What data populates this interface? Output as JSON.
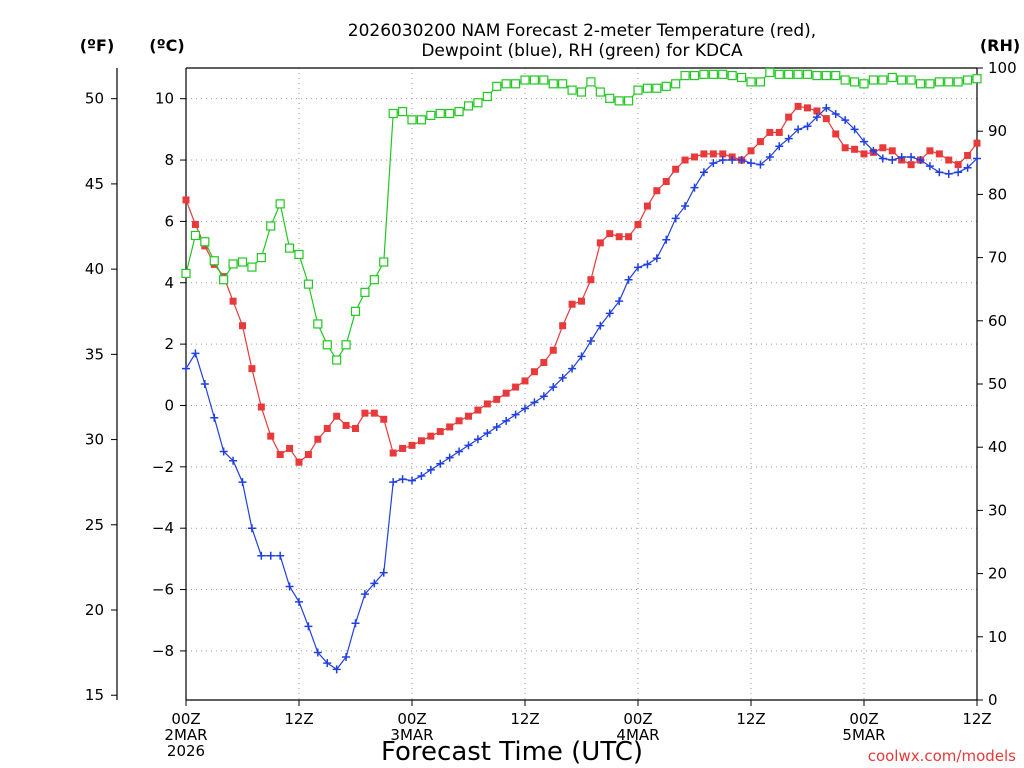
{
  "chart_data": {
    "type": "line",
    "title": [
      "2026030200 NAM Forecast 2-meter Temperature (red),",
      "Dewpoint (blue), RH (green) for KDCA"
    ],
    "xlabel": "Forecast Time (UTC)",
    "credit": "coolwx.com/models",
    "units": {
      "left_f": "(ºF)",
      "left_c": "(ºC)",
      "right": "(RH)"
    },
    "x_range_hours": [
      0,
      84
    ],
    "x_ticks": [
      {
        "hour": 0,
        "lines": [
          "00Z",
          "2MAR",
          "2026"
        ]
      },
      {
        "hour": 12,
        "lines": [
          "12Z"
        ]
      },
      {
        "hour": 24,
        "lines": [
          "00Z",
          "3MAR"
        ]
      },
      {
        "hour": 36,
        "lines": [
          "12Z"
        ]
      },
      {
        "hour": 48,
        "lines": [
          "00Z",
          "4MAR"
        ]
      },
      {
        "hour": 60,
        "lines": [
          "12Z"
        ]
      },
      {
        "hour": 72,
        "lines": [
          "00Z",
          "5MAR"
        ]
      },
      {
        "hour": 84,
        "lines": [
          "12Z"
        ]
      }
    ],
    "y_left_c": {
      "range": [
        -9.6,
        11.0
      ],
      "ticks": [
        -8,
        -6,
        -4,
        -2,
        0,
        2,
        4,
        6,
        8,
        10
      ]
    },
    "y_left_f": {
      "range": [
        15,
        51.8
      ],
      "ticks": [
        15,
        20,
        25,
        30,
        35,
        40,
        45,
        50
      ]
    },
    "y_right_rh": {
      "range": [
        0,
        100
      ],
      "ticks": [
        0,
        10,
        20,
        30,
        40,
        50,
        60,
        70,
        80,
        90,
        100
      ]
    },
    "grid": true,
    "colors": {
      "temperature": "#e8393b",
      "dewpoint": "#2140e0",
      "rh": "#21c821"
    },
    "series": [
      {
        "name": "Temperature",
        "axis": "celsius",
        "marker": "filled-square",
        "x": [
          0,
          1,
          2,
          3,
          4,
          5,
          6,
          7,
          8,
          9,
          10,
          11,
          12,
          13,
          14,
          15,
          16,
          17,
          18,
          19,
          20,
          21,
          22,
          23,
          24,
          25,
          26,
          27,
          28,
          29,
          30,
          31,
          32,
          33,
          34,
          35,
          36,
          37,
          38,
          39,
          40,
          41,
          42,
          43,
          44,
          45,
          46,
          47,
          48,
          49,
          50,
          51,
          52,
          53,
          54,
          55,
          56,
          57,
          58,
          59,
          60,
          61,
          62,
          63,
          64,
          65,
          66,
          67,
          68,
          69,
          70,
          71,
          72,
          73,
          74,
          75,
          76,
          77,
          78,
          79,
          80,
          81,
          82,
          83,
          84
        ],
        "values": [
          6.7,
          5.9,
          5.2,
          4.6,
          4.2,
          3.4,
          2.6,
          1.2,
          -0.05,
          -1.0,
          -1.6,
          -1.4,
          -1.85,
          -1.6,
          -1.1,
          -0.75,
          -0.35,
          -0.65,
          -0.75,
          -0.25,
          -0.25,
          -0.45,
          -1.55,
          -1.4,
          -1.3,
          -1.15,
          -1.0,
          -0.85,
          -0.7,
          -0.5,
          -0.35,
          -0.15,
          0.05,
          0.2,
          0.4,
          0.6,
          0.8,
          1.1,
          1.4,
          1.8,
          2.6,
          3.3,
          3.4,
          4.1,
          5.3,
          5.6,
          5.5,
          5.5,
          5.9,
          6.5,
          7.0,
          7.3,
          7.7,
          8.0,
          8.1,
          8.2,
          8.2,
          8.2,
          8.1,
          8.0,
          8.3,
          8.6,
          8.9,
          8.9,
          9.4,
          9.75,
          9.7,
          9.6,
          9.35,
          8.85,
          8.4,
          8.35,
          8.2,
          8.25,
          8.4,
          8.3,
          8.0,
          7.85,
          8.0,
          8.3,
          8.2,
          8.0,
          7.85,
          8.15,
          8.55
        ]
      },
      {
        "name": "Dewpoint",
        "axis": "celsius",
        "marker": "plus",
        "x": [
          0,
          1,
          2,
          3,
          4,
          5,
          6,
          7,
          8,
          9,
          10,
          11,
          12,
          13,
          14,
          15,
          16,
          17,
          18,
          19,
          20,
          21,
          22,
          23,
          24,
          25,
          26,
          27,
          28,
          29,
          30,
          31,
          32,
          33,
          34,
          35,
          36,
          37,
          38,
          39,
          40,
          41,
          42,
          43,
          44,
          45,
          46,
          47,
          48,
          49,
          50,
          51,
          52,
          53,
          54,
          55,
          56,
          57,
          58,
          59,
          60,
          61,
          62,
          63,
          64,
          65,
          66,
          67,
          68,
          69,
          70,
          71,
          72,
          73,
          74,
          75,
          76,
          77,
          78,
          79,
          80,
          81,
          82,
          83,
          84
        ],
        "values": [
          1.2,
          1.7,
          0.7,
          -0.4,
          -1.5,
          -1.8,
          -2.5,
          -4.0,
          -4.9,
          -4.9,
          -4.9,
          -5.9,
          -6.4,
          -7.2,
          -8.05,
          -8.4,
          -8.6,
          -8.2,
          -7.1,
          -6.15,
          -5.8,
          -5.45,
          -2.5,
          -2.4,
          -2.45,
          -2.3,
          -2.1,
          -1.9,
          -1.7,
          -1.5,
          -1.3,
          -1.1,
          -0.9,
          -0.7,
          -0.5,
          -0.3,
          -0.1,
          0.1,
          0.3,
          0.6,
          0.9,
          1.2,
          1.6,
          2.1,
          2.6,
          3.0,
          3.4,
          4.1,
          4.5,
          4.6,
          4.8,
          5.4,
          6.1,
          6.5,
          7.1,
          7.6,
          7.9,
          8.0,
          8.0,
          8.0,
          7.9,
          7.85,
          8.1,
          8.45,
          8.7,
          9.0,
          9.1,
          9.4,
          9.7,
          9.5,
          9.3,
          9.0,
          8.6,
          8.3,
          8.05,
          8.0,
          8.1,
          8.1,
          8.0,
          7.8,
          7.6,
          7.55,
          7.6,
          7.75,
          8.05
        ]
      },
      {
        "name": "RH",
        "axis": "rh",
        "marker": "open-square",
        "x": [
          0,
          1,
          2,
          3,
          4,
          5,
          6,
          7,
          8,
          9,
          10,
          11,
          12,
          13,
          14,
          15,
          16,
          17,
          18,
          19,
          20,
          21,
          22,
          23,
          24,
          25,
          26,
          27,
          28,
          29,
          30,
          31,
          32,
          33,
          34,
          35,
          36,
          37,
          38,
          39,
          40,
          41,
          42,
          43,
          44,
          45,
          46,
          47,
          48,
          49,
          50,
          51,
          52,
          53,
          54,
          55,
          56,
          57,
          58,
          59,
          60,
          61,
          62,
          63,
          64,
          65,
          66,
          67,
          68,
          69,
          70,
          71,
          72,
          73,
          74,
          75,
          76,
          77,
          78,
          79,
          80,
          81,
          82,
          83,
          84
        ],
        "values": [
          67.5,
          73.5,
          72.5,
          69.5,
          66.5,
          69.0,
          69.3,
          68.5,
          70.0,
          75.0,
          78.5,
          71.5,
          70.5,
          65.8,
          59.5,
          56.2,
          53.8,
          56.2,
          61.5,
          64.5,
          66.5,
          69.3,
          92.8,
          93.1,
          91.8,
          91.8,
          92.5,
          92.8,
          92.8,
          93.1,
          94.0,
          94.5,
          95.5,
          97.1,
          97.5,
          97.5,
          98.1,
          98.1,
          98.1,
          97.5,
          97.5,
          96.5,
          96.2,
          97.8,
          96.2,
          95.2,
          94.8,
          94.8,
          96.5,
          96.8,
          96.8,
          97.1,
          97.5,
          98.8,
          98.8,
          99.0,
          99.0,
          99.0,
          98.8,
          98.5,
          97.8,
          97.8,
          99.3,
          99.0,
          99.0,
          99.0,
          99.0,
          98.8,
          98.8,
          98.8,
          98.1,
          97.8,
          97.5,
          98.1,
          98.1,
          98.5,
          98.1,
          98.1,
          97.5,
          97.5,
          97.8,
          97.8,
          97.8,
          98.1,
          98.3
        ]
      }
    ]
  }
}
